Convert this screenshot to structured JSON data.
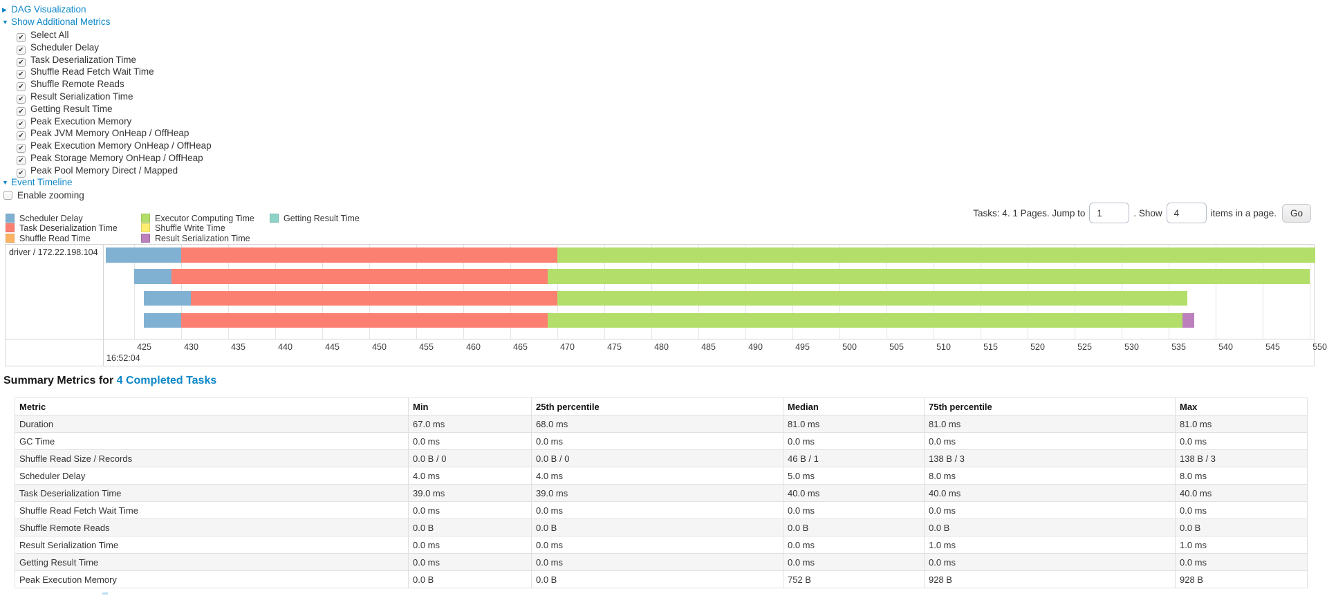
{
  "colors": {
    "link": "#0d87c8",
    "scheduler_delay": "#80B1D3",
    "task_deserialization": "#FB8072",
    "shuffle_read": "#FDB462",
    "executor_computing": "#B3DE69",
    "shuffle_write": "#FFED6F",
    "result_serialization": "#BC80BD",
    "getting_result": "#8DD3C7"
  },
  "controls": {
    "dag_label": "DAG Visualization",
    "metrics_label": "Show Additional Metrics",
    "event_timeline_label": "Event Timeline",
    "enable_zooming_label": "Enable zooming",
    "enable_zooming_checked": false,
    "checkboxes": [
      {
        "label": "Select All",
        "checked": true
      },
      {
        "label": "Scheduler Delay",
        "checked": true
      },
      {
        "label": "Task Deserialization Time",
        "checked": true
      },
      {
        "label": "Shuffle Read Fetch Wait Time",
        "checked": true
      },
      {
        "label": "Shuffle Remote Reads",
        "checked": true
      },
      {
        "label": "Result Serialization Time",
        "checked": true
      },
      {
        "label": "Getting Result Time",
        "checked": true
      },
      {
        "label": "Peak Execution Memory",
        "checked": true
      },
      {
        "label": "Peak JVM Memory OnHeap / OffHeap",
        "checked": true
      },
      {
        "label": "Peak Execution Memory OnHeap / OffHeap",
        "checked": true
      },
      {
        "label": "Peak Storage Memory OnHeap / OffHeap",
        "checked": true
      },
      {
        "label": "Peak Pool Memory Direct / Mapped",
        "checked": true
      }
    ]
  },
  "legend": {
    "columns": [
      [
        {
          "label": "Scheduler Delay",
          "color": "#80B1D3"
        },
        {
          "label": "Task Deserialization Time",
          "color": "#FB8072"
        },
        {
          "label": "Shuffle Read Time",
          "color": "#FDB462"
        }
      ],
      [
        {
          "label": "Executor Computing Time",
          "color": "#B3DE69"
        },
        {
          "label": "Shuffle Write Time",
          "color": "#FFED6F"
        },
        {
          "label": "Result Serialization Time",
          "color": "#BC80BD"
        }
      ],
      [
        {
          "label": "Getting Result Time",
          "color": "#8DD3C7"
        }
      ]
    ]
  },
  "pagination": {
    "prefix": "Tasks: 4. 1 Pages. Jump to",
    "page_value": "1",
    "mid": ". Show",
    "size_value": "4",
    "suffix": "items in a page.",
    "go_label": "Go"
  },
  "chart_data": {
    "type": "timeline",
    "row_label": "driver / 172.22.198.104",
    "x_axis": {
      "major_label": "16:52:04",
      "unit": "ms",
      "tick_start": 425,
      "tick_end": 550,
      "tick_step": 5,
      "view_min": 421.76,
      "view_max": 550.6
    },
    "tasks": [
      {
        "start": 422.0,
        "segments": [
          [
            "Scheduler Delay",
            8.0
          ],
          [
            "Task Deserialization Time",
            40.0
          ],
          [
            "Executor Computing Time",
            80.6
          ]
        ]
      },
      {
        "start": 425.0,
        "segments": [
          [
            "Scheduler Delay",
            4.0
          ],
          [
            "Task Deserialization Time",
            40.0
          ],
          [
            "Executor Computing Time",
            81.0
          ]
        ]
      },
      {
        "start": 426.0,
        "segments": [
          [
            "Scheduler Delay",
            5.0
          ],
          [
            "Task Deserialization Time",
            39.0
          ],
          [
            "Executor Computing Time",
            67.0
          ]
        ]
      },
      {
        "start": 426.0,
        "segments": [
          [
            "Scheduler Delay",
            4.0
          ],
          [
            "Task Deserialization Time",
            39.0
          ],
          [
            "Executor Computing Time",
            67.5
          ],
          [
            "Result Serialization Time",
            1.2
          ]
        ]
      }
    ],
    "segment_colors": {
      "Scheduler Delay": "#80B1D3",
      "Task Deserialization Time": "#FB8072",
      "Shuffle Read Time": "#FDB462",
      "Executor Computing Time": "#B3DE69",
      "Shuffle Write Time": "#FFED6F",
      "Result Serialization Time": "#BC80BD",
      "Getting Result Time": "#8DD3C7"
    }
  },
  "summary": {
    "title_prefix": "Summary Metrics for",
    "title_link": "4 Completed Tasks",
    "table": {
      "headers": [
        "Metric",
        "Min",
        "25th percentile",
        "Median",
        "75th percentile",
        "Max"
      ],
      "rows": [
        [
          "Duration",
          "67.0 ms",
          "68.0 ms",
          "81.0 ms",
          "81.0 ms",
          "81.0 ms"
        ],
        [
          "GC Time",
          "0.0 ms",
          "0.0 ms",
          "0.0 ms",
          "0.0 ms",
          "0.0 ms"
        ],
        [
          "Shuffle Read Size / Records",
          "0.0 B / 0",
          "0.0 B / 0",
          "46 B / 1",
          "138 B / 3",
          "138 B / 3"
        ],
        [
          "Scheduler Delay",
          "4.0 ms",
          "4.0 ms",
          "5.0 ms",
          "8.0 ms",
          "8.0 ms"
        ],
        [
          "Task Deserialization Time",
          "39.0 ms",
          "39.0 ms",
          "40.0 ms",
          "40.0 ms",
          "40.0 ms"
        ],
        [
          "Shuffle Read Fetch Wait Time",
          "0.0 ms",
          "0.0 ms",
          "0.0 ms",
          "0.0 ms",
          "0.0 ms"
        ],
        [
          "Shuffle Remote Reads",
          "0.0 B",
          "0.0 B",
          "0.0 B",
          "0.0 B",
          "0.0 B"
        ],
        [
          "Result Serialization Time",
          "0.0 ms",
          "0.0 ms",
          "0.0 ms",
          "1.0 ms",
          "1.0 ms"
        ],
        [
          "Getting Result Time",
          "0.0 ms",
          "0.0 ms",
          "0.0 ms",
          "0.0 ms",
          "0.0 ms"
        ],
        [
          "Peak Execution Memory",
          "0.0 B",
          "0.0 B",
          "752 B",
          "928 B",
          "928 B"
        ]
      ]
    }
  }
}
